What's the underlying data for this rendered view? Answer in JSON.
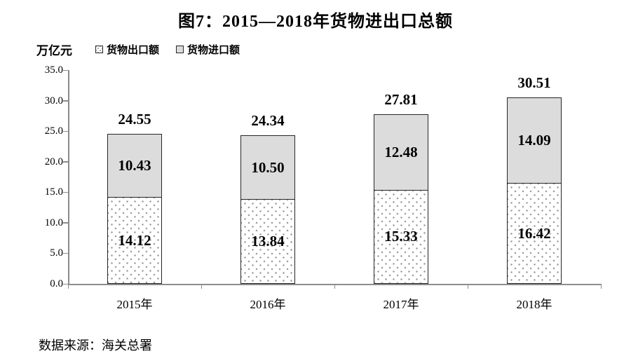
{
  "figure": {
    "title": "图7：2015—2018年货物进出口总额",
    "unit_label": "万亿元",
    "source": "数据来源：海关总署"
  },
  "legend": {
    "items": [
      {
        "label": "货物出口额",
        "swatch": "dotted-pattern"
      },
      {
        "label": "货物进口额",
        "swatch": "gray-fill"
      }
    ]
  },
  "chart_data": {
    "type": "bar",
    "stacked": true,
    "title": "图7：2015—2018年货物进出口总额",
    "ylabel": "万亿元",
    "categories": [
      "2015年",
      "2016年",
      "2017年",
      "2018年"
    ],
    "series": [
      {
        "name": "货物出口额",
        "values": [
          14.12,
          13.84,
          15.33,
          16.42
        ],
        "labels": [
          "14.12",
          "13.84",
          "15.33",
          "16.42"
        ],
        "fill": "white-dotted"
      },
      {
        "name": "货物进口额",
        "values": [
          10.43,
          10.5,
          12.48,
          14.09
        ],
        "labels": [
          "10.43",
          "10.50",
          "12.48",
          "14.09"
        ],
        "fill": "light-gray"
      }
    ],
    "totals": [
      "24.55",
      "24.34",
      "27.81",
      "30.51"
    ],
    "y_axis": {
      "min": 0,
      "max": 35,
      "tick_labels": [
        "0.0",
        "5.0",
        "10.0",
        "15.0",
        "20.0",
        "25.0",
        "30.0",
        "35.0"
      ]
    },
    "grid": false,
    "legend_position": "top-left",
    "source": "数据来源：海关总署",
    "colors": {
      "import_fill": "#dcdcdc",
      "export_dot": "#9a9a9a",
      "bar_border": "#262626",
      "axis": "#8c8c8c",
      "text": "#000000"
    }
  }
}
